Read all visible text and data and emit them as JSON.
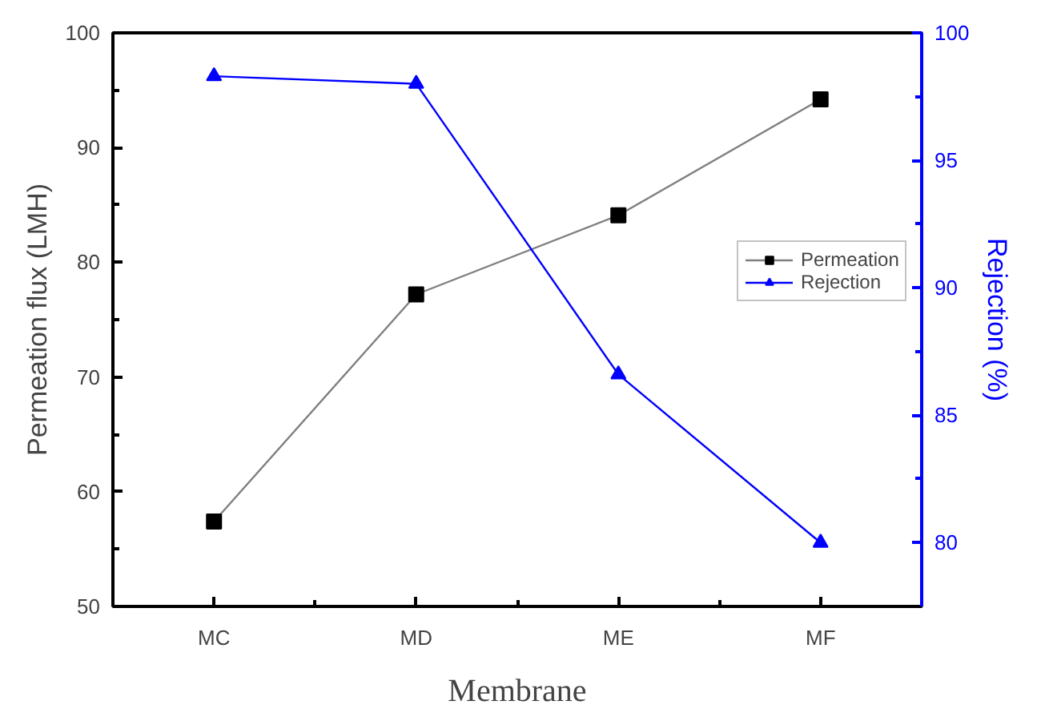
{
  "chart_data": {
    "type": "line",
    "xlabel": "Membrane",
    "ylabel": "Permeation flux (LMH)",
    "y2label": "Rejection (%)",
    "categories": [
      "MC",
      "MD",
      "ME",
      "MF"
    ],
    "series": [
      {
        "name": "Permeation",
        "color": "#000000",
        "marker": "square",
        "values": [
          57.4,
          77.2,
          84.1,
          94.2
        ]
      },
      {
        "name": "Rejection",
        "color": "#0000ff",
        "marker": "triangle",
        "axis": "y2",
        "values": [
          98.3,
          98.0,
          86.6,
          80.0
        ]
      }
    ],
    "ylim": [
      50,
      100
    ],
    "yticks": [
      50,
      60,
      70,
      80,
      90,
      100
    ],
    "y2lim": [
      77.5,
      100
    ],
    "y2ticks": [
      80,
      85,
      90,
      95,
      100
    ],
    "legend": "right",
    "grid": false,
    "line_style": "solid"
  }
}
